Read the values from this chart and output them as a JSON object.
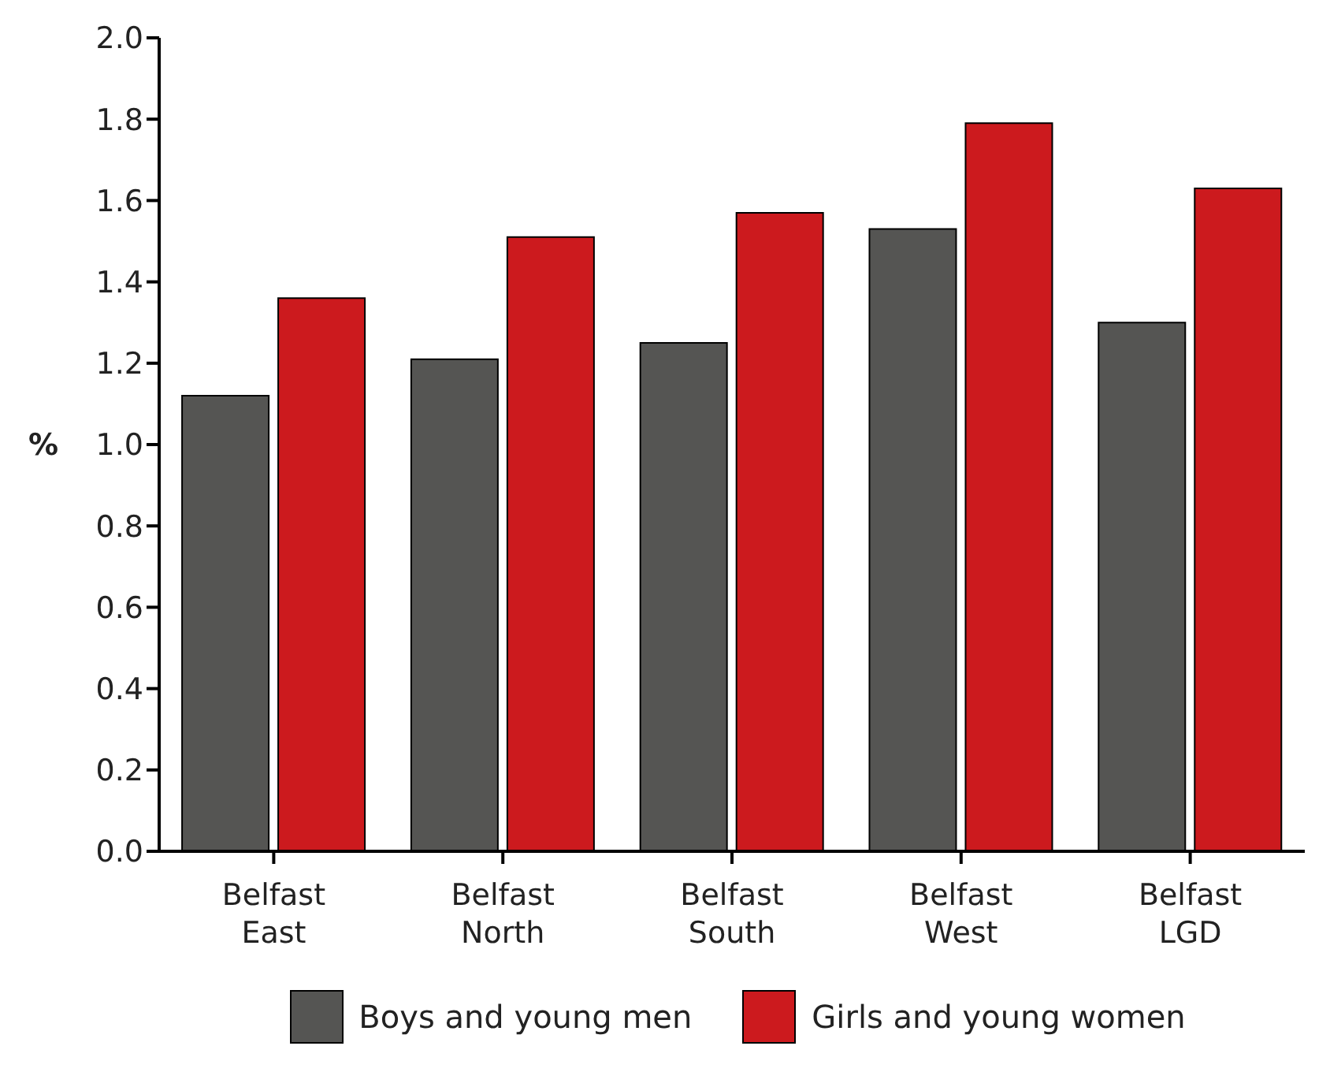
{
  "chart_data": {
    "type": "bar",
    "ylabel": "%",
    "categories": [
      "Belfast East",
      "Belfast North",
      "Belfast South",
      "Belfast West",
      "Belfast LGD"
    ],
    "series": [
      {
        "name": "Boys and young men",
        "color": "#555553",
        "values": [
          1.12,
          1.21,
          1.25,
          1.53,
          1.3
        ]
      },
      {
        "name": "Girls and young women",
        "color": "#cc1a1e",
        "values": [
          1.36,
          1.51,
          1.57,
          1.79,
          1.63
        ]
      }
    ],
    "ylim": [
      0,
      2
    ],
    "yticks": [
      {
        "value": 0,
        "label": "0.0"
      },
      {
        "value": 0.2,
        "label": "0.2"
      },
      {
        "value": 0.4,
        "label": "0.4"
      },
      {
        "value": 0.6,
        "label": "0.6"
      },
      {
        "value": 0.8,
        "label": "0.8"
      },
      {
        "value": 1,
        "label": "1.0"
      },
      {
        "value": 1.2,
        "label": "1.2"
      },
      {
        "value": 1.4,
        "label": "1.4"
      },
      {
        "value": 1.6,
        "label": "1.6"
      },
      {
        "value": 1.8,
        "label": "1.8"
      },
      {
        "value": 2,
        "label": "2.0"
      }
    ],
    "grid": false,
    "legend": "bottom"
  }
}
